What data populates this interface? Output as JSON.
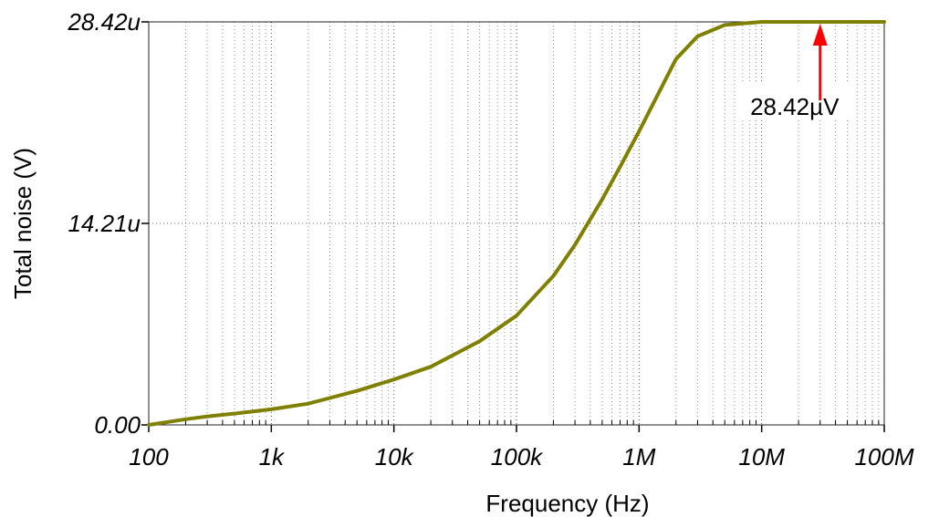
{
  "chart_data": {
    "type": "line",
    "xlabel": "Frequency (Hz)",
    "ylabel": "Total noise (V)",
    "x_scale": "log",
    "xlim": [
      100,
      100000000
    ],
    "ylim": [
      0,
      28.42
    ],
    "y_unit": "uV",
    "x_ticks": [
      {
        "value": 100,
        "label": "100"
      },
      {
        "value": 1000,
        "label": "1k"
      },
      {
        "value": 10000,
        "label": "10k"
      },
      {
        "value": 100000,
        "label": "100k"
      },
      {
        "value": 1000000,
        "label": "1M"
      },
      {
        "value": 10000000,
        "label": "10M"
      },
      {
        "value": 100000000,
        "label": "100M"
      }
    ],
    "y_ticks": [
      {
        "value": 0,
        "label": "0.00"
      },
      {
        "value": 14.21,
        "label": "14.21u"
      },
      {
        "value": 28.42,
        "label": "28.42u"
      }
    ],
    "grid": true,
    "series": [
      {
        "color": "#808000",
        "x": [
          100,
          200,
          300,
          500,
          1000,
          2000,
          3000,
          5000,
          10000,
          20000,
          30000,
          50000,
          100000,
          200000,
          300000,
          500000,
          700000,
          1000000,
          2000000,
          3000000,
          5000000,
          10000000,
          100000000
        ],
        "y": [
          0.0,
          0.4,
          0.6,
          0.8,
          1.1,
          1.5,
          1.9,
          2.4,
          3.2,
          4.1,
          4.9,
          5.9,
          7.7,
          10.5,
          12.7,
          15.9,
          18.2,
          20.7,
          25.8,
          27.4,
          28.2,
          28.42,
          28.42
        ]
      }
    ],
    "annotations": [
      {
        "text": "28.42µV",
        "x": 30000000,
        "y": 28.42,
        "arrow_color": "#ff0000"
      }
    ]
  }
}
